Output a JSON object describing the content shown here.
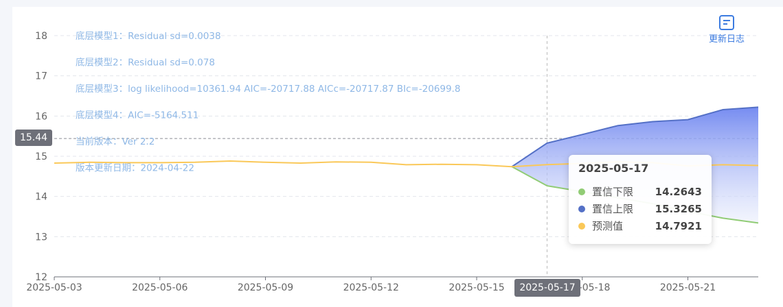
{
  "chart_data": {
    "type": "line",
    "x": [
      "2025-05-03",
      "2025-05-04",
      "2025-05-05",
      "2025-05-06",
      "2025-05-07",
      "2025-05-08",
      "2025-05-09",
      "2025-05-10",
      "2025-05-11",
      "2025-05-12",
      "2025-05-13",
      "2025-05-14",
      "2025-05-15",
      "2025-05-16",
      "2025-05-17",
      "2025-05-18",
      "2025-05-19",
      "2025-05-20",
      "2025-05-21",
      "2025-05-22",
      "2025-05-23"
    ],
    "x_ticks": [
      "2025-05-03",
      "2025-05-06",
      "2025-05-09",
      "2025-05-12",
      "2025-05-15",
      "2025-05-18",
      "2025-05-21"
    ],
    "y_ticks": [
      12,
      13,
      14,
      15,
      16,
      17,
      18
    ],
    "ylim": [
      12,
      18
    ],
    "series": [
      {
        "name": "置信下限",
        "color": "#91cc75",
        "values": [
          null,
          null,
          null,
          null,
          null,
          null,
          null,
          null,
          null,
          null,
          null,
          null,
          null,
          14.74,
          14.2643,
          14.12,
          13.97,
          13.82,
          13.63,
          13.46,
          13.34
        ]
      },
      {
        "name": "置信上限",
        "color": "#5470c6",
        "values": [
          null,
          null,
          null,
          null,
          null,
          null,
          null,
          null,
          null,
          null,
          null,
          null,
          null,
          14.74,
          15.3265,
          15.54,
          15.76,
          15.86,
          15.91,
          16.16,
          16.22
        ]
      },
      {
        "name": "预测值",
        "color": "#fac858",
        "values": [
          14.83,
          14.85,
          14.84,
          14.84,
          14.85,
          14.88,
          14.85,
          14.83,
          14.86,
          14.85,
          14.79,
          14.8,
          14.79,
          14.74,
          14.7921,
          14.82,
          14.86,
          14.84,
          14.76,
          14.79,
          14.77
        ]
      }
    ],
    "annotations": [
      "底层模型1：Residual sd=0.0038",
      "底层模型2：Residual sd=0.078",
      "底层模型3：log likelihood=10361.94 AIC=-20717.88 AICc=-20717.87 BIc=-20699.8",
      "底层模型4：AIC=-5164.511",
      "当前版本：Ver 2.2",
      "版本更新日期：2024-04-22"
    ],
    "crosshair": {
      "y_value": 15.44,
      "y_label": "15.44",
      "x_label": "2025-05-17"
    },
    "grid": true,
    "tooltip": {
      "title": "2025-05-17",
      "rows": [
        {
          "name": "置信下限",
          "value": "14.2643",
          "color": "#91cc75"
        },
        {
          "name": "置信上限",
          "value": "15.3265",
          "color": "#5470c6"
        },
        {
          "name": "预测值",
          "value": "14.7921",
          "color": "#fac858"
        }
      ]
    }
  },
  "toolbar": {
    "changelog_label": "更新日志",
    "changelog_icon": "document-icon"
  }
}
